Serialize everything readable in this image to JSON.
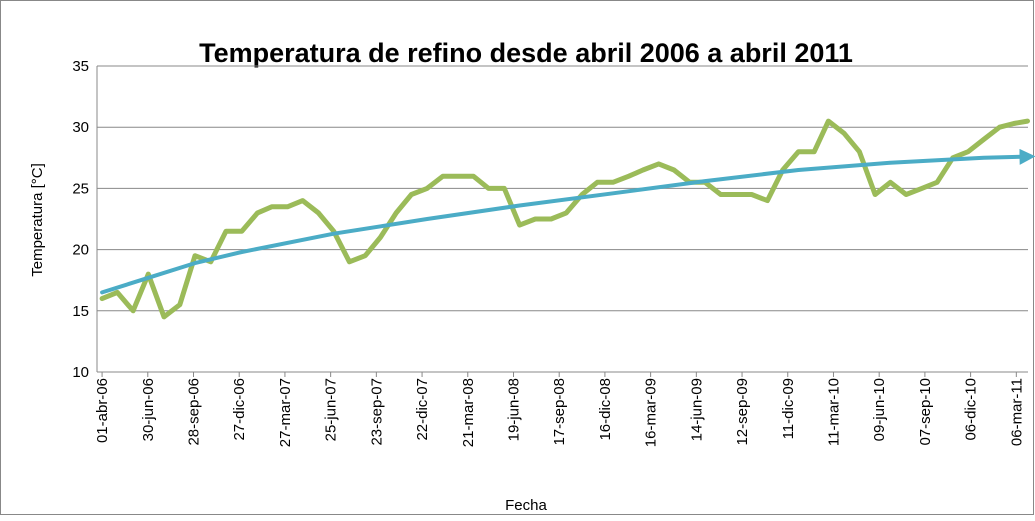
{
  "chart_data": {
    "type": "line",
    "title": "Temperatura de refino desde abril 2006 a abril 2011",
    "x_label": "Fecha",
    "y_label": "Temperatura [°C]",
    "xlim": [
      "2006-03-22",
      "2011-03-29"
    ],
    "xticks": [
      {
        "value": "2006-04-01",
        "label": "01-abr-06"
      },
      {
        "value": "2006-06-30",
        "label": "30-jun-06"
      },
      {
        "value": "2006-09-28",
        "label": "28-sep-06"
      },
      {
        "value": "2006-12-27",
        "label": "27-dic-06"
      },
      {
        "value": "2007-03-27",
        "label": "27-mar-07"
      },
      {
        "value": "2007-06-25",
        "label": "25-jun-07"
      },
      {
        "value": "2007-09-23",
        "label": "23-sep-07"
      },
      {
        "value": "2007-12-22",
        "label": "22-dic-07"
      },
      {
        "value": "2008-03-21",
        "label": "21-mar-08"
      },
      {
        "value": "2008-06-19",
        "label": "19-jun-08"
      },
      {
        "value": "2008-09-17",
        "label": "17-sep-08"
      },
      {
        "value": "2008-12-16",
        "label": "16-dic-08"
      },
      {
        "value": "2009-03-16",
        "label": "16-mar-09"
      },
      {
        "value": "2009-06-14",
        "label": "14-jun-09"
      },
      {
        "value": "2009-09-12",
        "label": "12-sep-09"
      },
      {
        "value": "2009-12-11",
        "label": "11-dic-09"
      },
      {
        "value": "2010-03-11",
        "label": "11-mar-10"
      },
      {
        "value": "2010-06-09",
        "label": "09-jun-10"
      },
      {
        "value": "2010-09-07",
        "label": "07-sep-10"
      },
      {
        "value": "2010-12-06",
        "label": "06-dic-10"
      },
      {
        "value": "2011-03-06",
        "label": "06-mar-11"
      }
    ],
    "ylim": [
      10,
      35
    ],
    "yticks": [
      10,
      15,
      20,
      25,
      30,
      35
    ],
    "grid": true,
    "series": [
      {
        "color": "#9bbb59",
        "x": [
          "2006-04-01",
          "2006-05-01",
          "2006-06-01",
          "2006-07-01",
          "2006-08-01",
          "2006-09-01",
          "2006-10-01",
          "2006-11-01",
          "2006-12-01",
          "2007-01-01",
          "2007-02-01",
          "2007-03-01",
          "2007-04-01",
          "2007-05-01",
          "2007-06-01",
          "2007-07-01",
          "2007-08-01",
          "2007-09-01",
          "2007-10-01",
          "2007-11-01",
          "2007-12-01",
          "2008-01-01",
          "2008-02-01",
          "2008-03-01",
          "2008-04-01",
          "2008-05-01",
          "2008-06-01",
          "2008-07-01",
          "2008-08-01",
          "2008-09-01",
          "2008-10-01",
          "2008-11-01",
          "2008-12-01",
          "2009-01-01",
          "2009-02-01",
          "2009-03-01",
          "2009-04-01",
          "2009-05-01",
          "2009-06-01",
          "2009-07-01",
          "2009-08-01",
          "2009-09-01",
          "2009-10-01",
          "2009-11-01",
          "2009-12-01",
          "2010-01-01",
          "2010-02-01",
          "2010-03-01",
          "2010-04-01",
          "2010-05-01",
          "2010-06-01",
          "2010-07-01",
          "2010-08-01",
          "2010-09-01",
          "2010-10-01",
          "2010-11-01",
          "2010-12-01",
          "2011-01-01",
          "2011-02-01",
          "2011-03-01",
          "2011-03-28"
        ],
        "values": [
          16,
          16.5,
          15,
          18,
          14.5,
          15.5,
          19.5,
          19,
          21.5,
          21.5,
          23,
          23.5,
          23.5,
          24,
          23,
          21.5,
          19,
          19.5,
          21,
          23,
          24.5,
          25,
          26,
          26,
          26,
          25,
          25,
          22,
          22.5,
          22.5,
          23,
          24.5,
          25.5,
          25.5,
          26,
          26.5,
          27,
          26.5,
          25.5,
          25.5,
          24.5,
          24.5,
          24.5,
          24,
          26.5,
          28,
          28,
          30.5,
          29.5,
          28,
          24.5,
          25.5,
          24.5,
          25,
          25.5,
          27.5,
          28,
          29,
          30,
          30.3,
          30.5
        ]
      },
      {
        "color": "#4bacc6",
        "x": [
          "2006-04-01",
          "2006-07-01",
          "2006-10-01",
          "2007-01-01",
          "2007-07-01",
          "2008-01-01",
          "2008-07-01",
          "2009-01-01",
          "2009-07-01",
          "2010-01-01",
          "2010-07-01",
          "2011-01-01",
          "2011-03-28"
        ],
        "values": [
          16.5,
          17.7,
          18.9,
          19.8,
          21.3,
          22.5,
          23.6,
          24.6,
          25.6,
          26.5,
          27.1,
          27.5,
          27.6
        ]
      }
    ]
  }
}
